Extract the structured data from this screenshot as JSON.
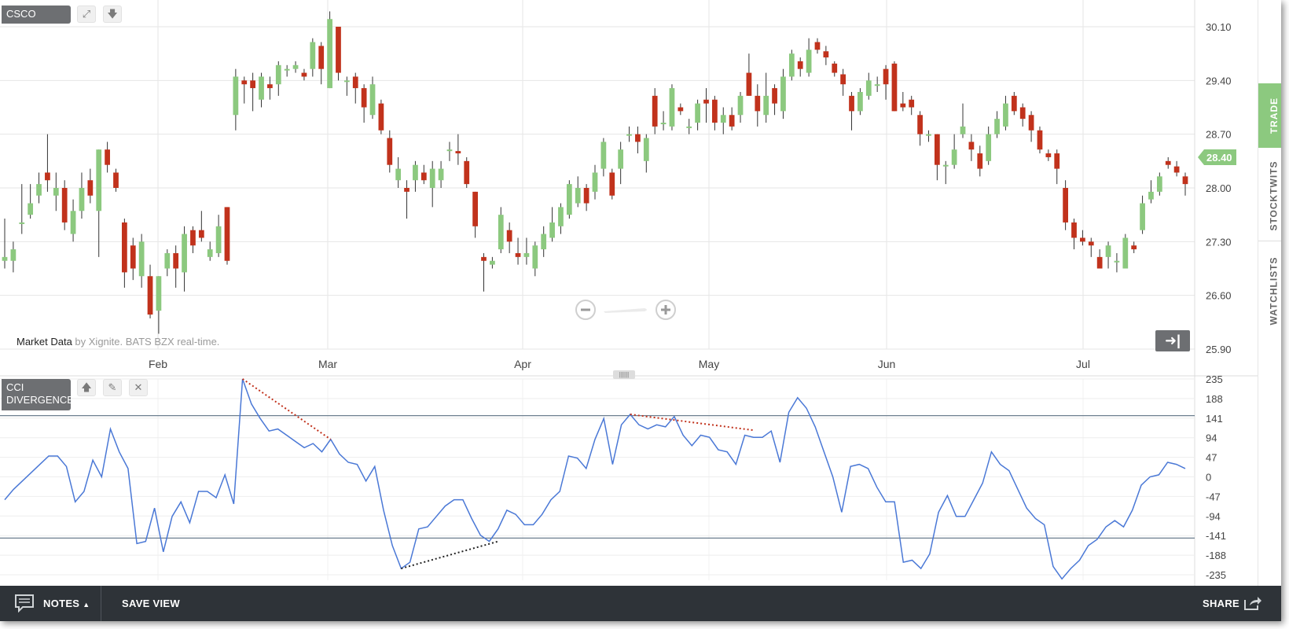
{
  "symbol": "CSCO",
  "attribution": {
    "brand": "Market Data",
    "rest": " by Xignite. BATS BZX real-time."
  },
  "cci_panel": {
    "line1": "CCI",
    "line2": "DIVERGENCE"
  },
  "sidebar": {
    "tabs": [
      "TRADE",
      "STOCKTWITS",
      "WATCHLISTS"
    ]
  },
  "footer": {
    "notes": "NOTES",
    "save_view": "SAVE VIEW",
    "share": "SHARE"
  },
  "colors": {
    "up": "#8cc97f",
    "down": "#c1321c",
    "cci_line": "#4a78d6",
    "bg": "#ffffff",
    "grid": "#e6e6e6",
    "footer": "#2e3338"
  },
  "icons": [
    "expand-icon",
    "download-icon",
    "move-up-icon",
    "edit-icon",
    "close-icon",
    "zoom-out-icon",
    "zoom-in-icon",
    "collapse-right-icon",
    "notes-icon",
    "share-icon"
  ],
  "chart_data": [
    {
      "type": "candlestick",
      "title": "CSCO",
      "y_ticks": [
        "30.10",
        "29.40",
        "28.70",
        "28.00",
        "27.30",
        "26.60",
        "25.90"
      ],
      "ylim": [
        25.9,
        30.1
      ],
      "x_ticks": [
        "Feb",
        "Mar",
        "Apr",
        "May",
        "Jun",
        "Jul"
      ],
      "last_price": "28.40",
      "candles": [
        [
          27.05,
          27.1,
          27.6,
          26.95
        ],
        [
          27.05,
          27.2,
          27.3,
          26.9
        ],
        [
          27.55,
          27.55,
          28.05,
          27.4
        ],
        [
          27.65,
          27.8,
          28.05,
          27.6
        ],
        [
          27.9,
          28.05,
          28.2,
          27.8
        ],
        [
          28.2,
          28.1,
          28.7,
          27.95
        ],
        [
          27.9,
          28.0,
          28.2,
          27.7
        ],
        [
          28.0,
          27.55,
          28.1,
          27.45
        ],
        [
          27.4,
          27.7,
          27.85,
          27.3
        ],
        [
          27.7,
          28.0,
          28.2,
          27.6
        ],
        [
          28.1,
          27.9,
          28.25,
          27.8
        ],
        [
          27.7,
          28.5,
          28.5,
          27.1
        ],
        [
          28.5,
          28.3,
          28.6,
          28.2
        ],
        [
          28.2,
          28.0,
          28.25,
          27.95
        ],
        [
          27.55,
          26.9,
          27.6,
          26.7
        ],
        [
          27.25,
          26.95,
          27.35,
          26.8
        ],
        [
          26.85,
          27.3,
          27.4,
          26.7
        ],
        [
          26.85,
          26.35,
          27.0,
          26.3
        ],
        [
          26.4,
          26.85,
          26.85,
          26.1
        ],
        [
          26.95,
          27.15,
          27.2,
          26.85
        ],
        [
          27.15,
          26.95,
          27.25,
          26.7
        ],
        [
          26.9,
          27.4,
          27.5,
          26.65
        ],
        [
          27.45,
          27.25,
          27.5,
          27.15
        ],
        [
          27.45,
          27.35,
          27.7,
          27.3
        ],
        [
          27.1,
          27.2,
          27.3,
          27.05
        ],
        [
          27.15,
          27.5,
          27.65,
          27.1
        ],
        [
          27.75,
          27.05,
          27.75,
          27.0
        ],
        [
          28.95,
          29.45,
          29.55,
          28.75
        ],
        [
          29.4,
          29.35,
          29.45,
          29.1
        ],
        [
          29.4,
          29.3,
          29.5,
          29.0
        ],
        [
          29.15,
          29.45,
          29.5,
          29.05
        ],
        [
          29.35,
          29.3,
          29.45,
          29.15
        ],
        [
          29.35,
          29.6,
          29.65,
          29.2
        ],
        [
          29.55,
          29.55,
          29.6,
          29.45
        ],
        [
          29.55,
          29.6,
          29.65,
          29.5
        ],
        [
          29.5,
          29.45,
          29.55,
          29.4
        ],
        [
          29.55,
          29.9,
          29.95,
          29.45
        ],
        [
          29.85,
          29.55,
          29.9,
          29.35
        ],
        [
          29.3,
          30.2,
          30.3,
          29.3
        ],
        [
          30.1,
          29.5,
          30.1,
          29.4
        ],
        [
          29.38,
          29.4,
          29.45,
          29.2
        ],
        [
          29.45,
          29.3,
          29.5,
          29.1
        ],
        [
          29.3,
          29.05,
          29.35,
          28.85
        ],
        [
          28.95,
          29.35,
          29.45,
          28.9
        ],
        [
          29.1,
          28.75,
          29.15,
          28.7
        ],
        [
          28.65,
          28.3,
          28.75,
          28.2
        ],
        [
          28.1,
          28.25,
          28.4,
          28.0
        ],
        [
          28.0,
          27.95,
          28.1,
          27.6
        ],
        [
          28.1,
          28.3,
          28.35,
          27.95
        ],
        [
          28.2,
          28.1,
          28.3,
          28.05
        ],
        [
          28.0,
          28.25,
          28.35,
          27.75
        ],
        [
          28.1,
          28.25,
          28.35,
          28.0
        ],
        [
          28.48,
          28.5,
          28.6,
          28.35
        ],
        [
          28.48,
          28.45,
          28.7,
          28.3
        ],
        [
          28.35,
          28.05,
          28.4,
          28.0
        ],
        [
          27.95,
          27.5,
          27.95,
          27.35
        ],
        [
          27.1,
          27.05,
          27.15,
          26.65
        ],
        [
          27.0,
          27.05,
          27.1,
          26.95
        ],
        [
          27.2,
          27.65,
          27.75,
          27.15
        ],
        [
          27.45,
          27.3,
          27.55,
          27.15
        ],
        [
          27.15,
          27.1,
          27.35,
          27.0
        ],
        [
          27.1,
          27.15,
          27.35,
          27.0
        ],
        [
          26.95,
          27.25,
          27.3,
          26.85
        ],
        [
          27.2,
          27.4,
          27.5,
          27.1
        ],
        [
          27.35,
          27.55,
          27.75,
          27.3
        ],
        [
          27.5,
          27.75,
          27.8,
          27.4
        ],
        [
          27.65,
          28.05,
          28.1,
          27.6
        ],
        [
          27.8,
          28.0,
          28.15,
          27.75
        ],
        [
          28.0,
          27.8,
          28.05,
          27.7
        ],
        [
          27.95,
          28.2,
          28.3,
          27.85
        ],
        [
          28.25,
          28.6,
          28.65,
          28.15
        ],
        [
          28.2,
          27.9,
          28.25,
          27.85
        ],
        [
          28.25,
          28.5,
          28.6,
          28.05
        ],
        [
          28.7,
          28.7,
          28.8,
          28.6
        ],
        [
          28.7,
          28.6,
          28.8,
          28.45
        ],
        [
          28.35,
          28.65,
          28.7,
          28.2
        ],
        [
          29.2,
          28.8,
          29.3,
          28.7
        ],
        [
          28.85,
          28.85,
          29.0,
          28.75
        ],
        [
          28.8,
          29.3,
          29.35,
          28.75
        ],
        [
          29.05,
          29.0,
          29.1,
          28.95
        ],
        [
          28.8,
          28.8,
          28.9,
          28.7
        ],
        [
          28.85,
          29.1,
          29.15,
          28.75
        ],
        [
          29.15,
          29.1,
          29.3,
          28.85
        ],
        [
          29.15,
          28.85,
          29.2,
          28.75
        ],
        [
          28.85,
          28.95,
          29.05,
          28.7
        ],
        [
          28.95,
          28.8,
          29.05,
          28.75
        ],
        [
          28.95,
          29.2,
          29.25,
          28.85
        ],
        [
          29.5,
          29.2,
          29.75,
          29.2
        ],
        [
          29.2,
          29.0,
          29.35,
          28.8
        ],
        [
          28.95,
          29.2,
          29.5,
          28.85
        ],
        [
          29.3,
          29.1,
          29.35,
          28.95
        ],
        [
          29.0,
          29.45,
          29.55,
          28.9
        ],
        [
          29.45,
          29.75,
          29.8,
          29.4
        ],
        [
          29.65,
          29.55,
          29.7,
          29.45
        ],
        [
          29.5,
          29.8,
          29.95,
          29.45
        ],
        [
          29.9,
          29.8,
          29.95,
          29.75
        ],
        [
          29.78,
          29.7,
          29.85,
          29.6
        ],
        [
          29.62,
          29.5,
          29.65,
          29.45
        ],
        [
          29.48,
          29.35,
          29.55,
          29.2
        ],
        [
          29.2,
          29.0,
          29.25,
          28.75
        ],
        [
          29.0,
          29.25,
          29.3,
          28.95
        ],
        [
          29.2,
          29.4,
          29.5,
          29.15
        ],
        [
          29.35,
          29.35,
          29.45,
          29.25
        ],
        [
          29.55,
          29.35,
          29.6,
          29.15
        ],
        [
          29.62,
          29.0,
          29.65,
          29.0
        ],
        [
          29.1,
          29.05,
          29.25,
          29.0
        ],
        [
          29.15,
          29.05,
          29.2,
          28.95
        ],
        [
          28.95,
          28.7,
          29.0,
          28.55
        ],
        [
          28.7,
          28.7,
          28.75,
          28.6
        ],
        [
          28.7,
          28.3,
          28.7,
          28.1
        ],
        [
          28.28,
          28.3,
          28.35,
          28.05
        ],
        [
          28.3,
          28.5,
          28.7,
          28.25
        ],
        [
          28.7,
          28.8,
          29.1,
          28.65
        ],
        [
          28.6,
          28.5,
          28.7,
          28.35
        ],
        [
          28.45,
          28.25,
          28.55,
          28.15
        ],
        [
          28.35,
          28.7,
          28.8,
          28.3
        ],
        [
          28.7,
          28.9,
          29.0,
          28.65
        ],
        [
          28.8,
          29.1,
          29.2,
          28.75
        ],
        [
          29.2,
          29.0,
          29.25,
          28.95
        ],
        [
          29.05,
          28.9,
          29.1,
          28.8
        ],
        [
          28.95,
          28.75,
          29.0,
          28.6
        ],
        [
          28.75,
          28.5,
          28.8,
          28.45
        ],
        [
          28.45,
          28.4,
          28.5,
          28.35
        ],
        [
          28.45,
          28.25,
          28.5,
          28.05
        ],
        [
          28.0,
          27.55,
          28.1,
          27.45
        ],
        [
          27.55,
          27.35,
          27.6,
          27.2
        ],
        [
          27.35,
          27.3,
          27.45,
          27.25
        ],
        [
          27.3,
          27.25,
          27.35,
          27.1
        ],
        [
          27.1,
          26.95,
          27.2,
          26.95
        ],
        [
          27.1,
          27.25,
          27.3,
          26.95
        ],
        [
          27.05,
          27.05,
          27.15,
          26.9
        ],
        [
          26.95,
          27.35,
          27.4,
          26.95
        ],
        [
          27.25,
          27.2,
          27.3,
          27.15
        ],
        [
          27.45,
          27.8,
          27.9,
          27.4
        ],
        [
          27.85,
          27.95,
          28.1,
          27.8
        ],
        [
          27.95,
          28.15,
          28.2,
          27.9
        ],
        [
          28.35,
          28.3,
          28.4,
          28.25
        ],
        [
          28.28,
          28.2,
          28.35,
          28.15
        ],
        [
          28.15,
          28.05,
          28.2,
          27.9
        ]
      ]
    },
    {
      "type": "line",
      "title": "CCI DIVERGENCE",
      "y_ticks": [
        "235",
        "188",
        "141",
        "94",
        "47",
        "0",
        "-47",
        "-94",
        "-141",
        "-188",
        "-235"
      ],
      "ylim": [
        -235,
        235
      ],
      "reference_lines": [
        147,
        -147
      ],
      "series": [
        {
          "values": [
            -55,
            -30,
            -10,
            10,
            30,
            50,
            50,
            25,
            -60,
            -35,
            40,
            0,
            115,
            60,
            20,
            -160,
            -155,
            -75,
            -180,
            -95,
            -60,
            -110,
            -35,
            -35,
            -50,
            5,
            -65,
            235,
            175,
            140,
            110,
            115,
            100,
            85,
            70,
            80,
            60,
            90,
            55,
            35,
            30,
            -10,
            25,
            -80,
            -165,
            -220,
            -205,
            -125,
            -120,
            -95,
            -70,
            -55,
            -55,
            -100,
            -140,
            -155,
            -125,
            -80,
            -90,
            -115,
            -115,
            -90,
            -55,
            -35,
            50,
            45,
            20,
            90,
            140,
            30,
            125,
            150,
            125,
            115,
            125,
            120,
            145,
            100,
            75,
            100,
            95,
            65,
            60,
            30,
            100,
            95,
            95,
            110,
            35,
            155,
            190,
            165,
            120,
            60,
            0,
            -85,
            25,
            30,
            20,
            -25,
            -60,
            -60,
            -205,
            -200,
            -220,
            -185,
            -85,
            -45,
            -95,
            -95,
            -55,
            -15,
            60,
            30,
            15,
            -30,
            -75,
            -100,
            -115,
            -215,
            -245,
            -220,
            -200,
            -165,
            -150,
            -120,
            -105,
            -120,
            -80,
            -20,
            0,
            5,
            35,
            30,
            20
          ]
        }
      ],
      "divergence_lines": [
        {
          "color": "#c1321c",
          "points": [
            [
              27,
              235
            ],
            [
              37,
              90
            ]
          ]
        },
        {
          "color": "#c1321c",
          "points": [
            [
              71,
              150
            ],
            [
              85,
              112
            ]
          ]
        },
        {
          "color": "#222222",
          "points": [
            [
              45,
              -220
            ],
            [
              56,
              -155
            ]
          ]
        }
      ]
    }
  ]
}
